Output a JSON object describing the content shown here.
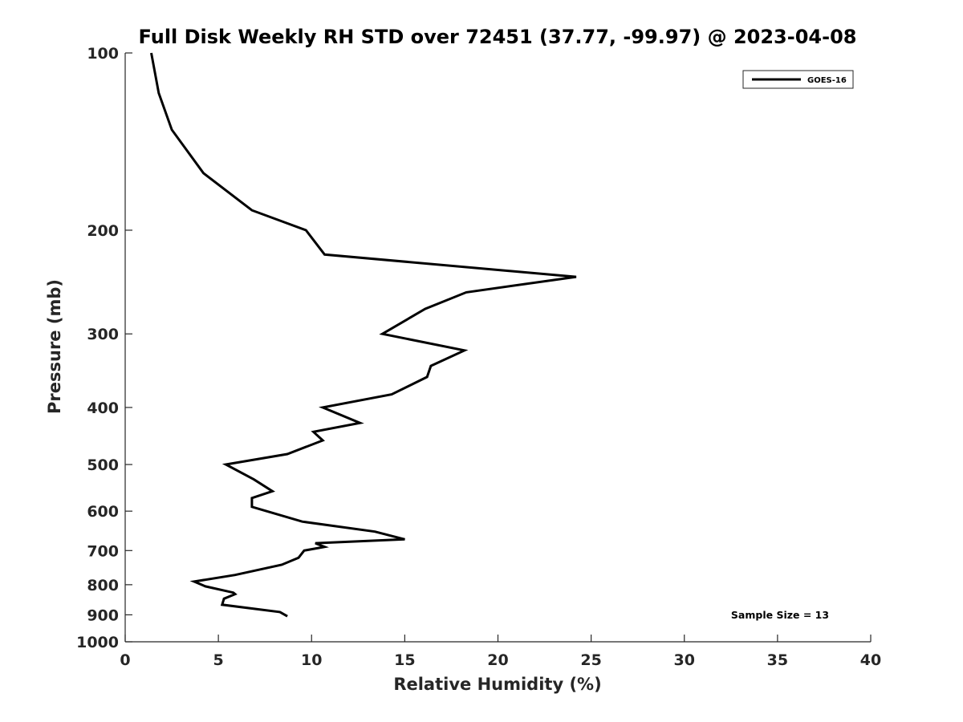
{
  "chart_data": {
    "type": "line",
    "title": "Full Disk Weekly RH STD over 72451 (37.77, -99.97) @ 2023-04-08",
    "xlabel": "Relative Humidity (%)",
    "ylabel": "Pressure (mb)",
    "xlim": [
      0,
      40
    ],
    "ylim": [
      100,
      1000
    ],
    "yscale": "log",
    "yreversed": true,
    "xticks": [
      0,
      5,
      10,
      15,
      20,
      25,
      30,
      35,
      40
    ],
    "yticks": [
      100,
      200,
      300,
      400,
      500,
      600,
      700,
      800,
      900,
      1000
    ],
    "grid": false,
    "legend": {
      "position": "top-right",
      "entries": [
        "GOES-16"
      ]
    },
    "annotation": "Sample Size = 13",
    "series": [
      {
        "name": "GOES-16",
        "color": "#000000",
        "x": [
          1.4,
          1.8,
          2.5,
          4.2,
          6.8,
          9.7,
          10.7,
          24.2,
          18.3,
          16.1,
          13.8,
          18.2,
          16.4,
          16.2,
          14.3,
          10.6,
          12.6,
          10.1,
          10.6,
          8.7,
          5.4,
          6.9,
          7.9,
          6.8,
          6.8,
          9.5,
          13.4,
          15.0,
          10.2,
          10.7,
          9.6,
          9.3,
          8.4,
          5.9,
          3.7,
          4.3,
          5.8,
          5.9,
          5.3,
          5.2,
          8.3,
          8.7
        ],
        "y": [
          100,
          117,
          135,
          160,
          185,
          200,
          220,
          240,
          255,
          272,
          300,
          320,
          340,
          355,
          380,
          400,
          425,
          440,
          455,
          480,
          500,
          530,
          555,
          570,
          590,
          625,
          650,
          670,
          680,
          690,
          700,
          720,
          740,
          770,
          790,
          805,
          825,
          830,
          845,
          865,
          890,
          905
        ]
      }
    ]
  }
}
